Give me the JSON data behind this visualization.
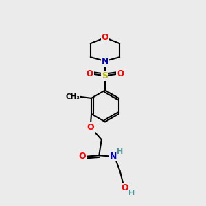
{
  "bg_color": "#ebebeb",
  "bond_color": "#000000",
  "atom_colors": {
    "O": "#ff0000",
    "N": "#0000cc",
    "S": "#b8b800",
    "H": "#4a9999",
    "C": "#000000"
  },
  "lw": 1.5
}
